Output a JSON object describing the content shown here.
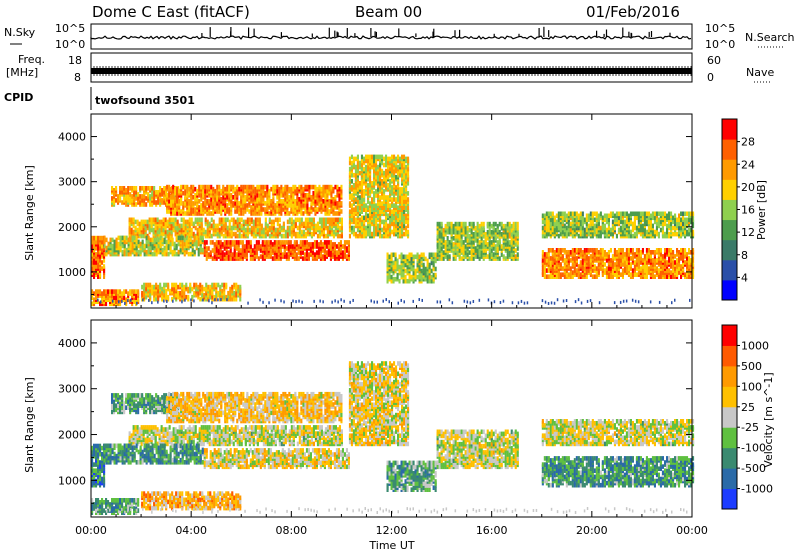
{
  "header": {
    "station": "Dome C East (fitACF)",
    "beam": "Beam 00",
    "date": "01/Feb/2016"
  },
  "top_panels": {
    "nsky_label": "N.Sky",
    "nsky_ticks": [
      "10^5",
      "10^0"
    ],
    "nsearch_label": "N.Search",
    "freq_label_1": "Freq.",
    "freq_label_2": "[MHz]",
    "freq_ticks": [
      "18",
      "8"
    ],
    "nave_ticks": [
      "60",
      "0"
    ],
    "nave_label": "Nave",
    "cpid_label": "CPID",
    "cpid_value": "twofsound 3501"
  },
  "chart_data": [
    {
      "type": "heatmap",
      "ylabel": "Slant Range [km]",
      "ylim": [
        200,
        4500
      ],
      "y_ticks": [
        1000,
        2000,
        3000,
        4000
      ],
      "xlim": [
        0,
        24
      ],
      "x_ticks": [
        "00:00",
        "04:00",
        "08:00",
        "12:00",
        "16:00",
        "20:00",
        "00:00"
      ],
      "colorbar_label": "Power [dB]",
      "colorbar_ticks": [
        "28",
        "24",
        "20",
        "16",
        "12",
        "8",
        "4"
      ],
      "colors": [
        "#0000ff",
        "#2a4fa8",
        "#3a7a68",
        "#4d9d4d",
        "#8fd04f",
        "#ffd000",
        "#ff9a00",
        "#ff6000",
        "#ff0000"
      ],
      "ranges": [
        {
          "t0": 0.0,
          "t1": 1.9,
          "r0": 300,
          "r1": 600,
          "level": 0.75
        },
        {
          "t0": 0.0,
          "t1": 0.5,
          "r0": 900,
          "r1": 1800,
          "level": 0.8
        },
        {
          "t0": 0.8,
          "t1": 3.5,
          "r0": 2500,
          "r1": 2900,
          "level": 0.7
        },
        {
          "t0": 1.5,
          "t1": 10.0,
          "r0": 1800,
          "r1": 2200,
          "level": 0.65
        },
        {
          "t0": 3.0,
          "t1": 10.0,
          "r0": 2300,
          "r1": 2900,
          "level": 0.75
        },
        {
          "t0": 4.5,
          "t1": 10.3,
          "r0": 1300,
          "r1": 1700,
          "level": 0.85
        },
        {
          "t0": 0.5,
          "t1": 4.5,
          "r0": 1400,
          "r1": 1800,
          "level": 0.55
        },
        {
          "t0": 2.0,
          "t1": 6.0,
          "r0": 400,
          "r1": 750,
          "level": 0.65
        },
        {
          "t0": 10.3,
          "t1": 12.7,
          "r0": 1800,
          "r1": 3600,
          "level": 0.6
        },
        {
          "t0": 11.8,
          "t1": 13.8,
          "r0": 800,
          "r1": 1400,
          "level": 0.5
        },
        {
          "t0": 13.8,
          "t1": 17.0,
          "r0": 1300,
          "r1": 2100,
          "level": 0.5
        },
        {
          "t0": 18.0,
          "t1": 24.0,
          "r0": 1800,
          "r1": 2300,
          "level": 0.5
        },
        {
          "t0": 18.0,
          "t1": 24.0,
          "r0": 900,
          "r1": 1500,
          "level": 0.75
        }
      ]
    },
    {
      "type": "heatmap",
      "ylabel": "Slant Range [km]",
      "ylim": [
        200,
        4500
      ],
      "y_ticks": [
        1000,
        2000,
        3000,
        4000
      ],
      "xlim": [
        0,
        24
      ],
      "x_ticks": [
        "00:00",
        "04:00",
        "08:00",
        "12:00",
        "16:00",
        "20:00",
        "00:00"
      ],
      "xlabel": "Time UT",
      "colorbar_label": "Velocity [m s^-1]",
      "colorbar_ticks": [
        "1000",
        "500",
        "100",
        "25",
        "-25",
        "-100",
        "-500",
        "-1000"
      ],
      "colors": [
        "#1c3cff",
        "#2a6aa8",
        "#3a8a70",
        "#5fc040",
        "#c8c8c8",
        "#ffc000",
        "#ff9a00",
        "#ff5a00",
        "#ff0000"
      ],
      "ranges": [
        {
          "t0": 0.0,
          "t1": 1.9,
          "r0": 300,
          "r1": 600,
          "level": 0.3
        },
        {
          "t0": 0.0,
          "t1": 0.5,
          "r0": 900,
          "r1": 1800,
          "level": 0.25
        },
        {
          "t0": 0.8,
          "t1": 3.5,
          "r0": 2500,
          "r1": 2900,
          "level": 0.35
        },
        {
          "t0": 1.5,
          "t1": 10.0,
          "r0": 1800,
          "r1": 2200,
          "level": 0.5
        },
        {
          "t0": 3.0,
          "t1": 10.0,
          "r0": 2300,
          "r1": 2900,
          "level": 0.6
        },
        {
          "t0": 4.5,
          "t1": 10.3,
          "r0": 1300,
          "r1": 1700,
          "level": 0.55
        },
        {
          "t0": 0.5,
          "t1": 4.5,
          "r0": 1400,
          "r1": 1800,
          "level": 0.3
        },
        {
          "t0": 2.0,
          "t1": 6.0,
          "r0": 400,
          "r1": 750,
          "level": 0.65
        },
        {
          "t0": 10.3,
          "t1": 12.7,
          "r0": 1800,
          "r1": 3600,
          "level": 0.55
        },
        {
          "t0": 11.8,
          "t1": 13.8,
          "r0": 800,
          "r1": 1400,
          "level": 0.35
        },
        {
          "t0": 13.8,
          "t1": 17.0,
          "r0": 1300,
          "r1": 2100,
          "level": 0.5
        },
        {
          "t0": 18.0,
          "t1": 24.0,
          "r0": 1800,
          "r1": 2300,
          "level": 0.5
        },
        {
          "t0": 18.0,
          "t1": 24.0,
          "r0": 900,
          "r1": 1500,
          "level": 0.3
        }
      ]
    }
  ]
}
